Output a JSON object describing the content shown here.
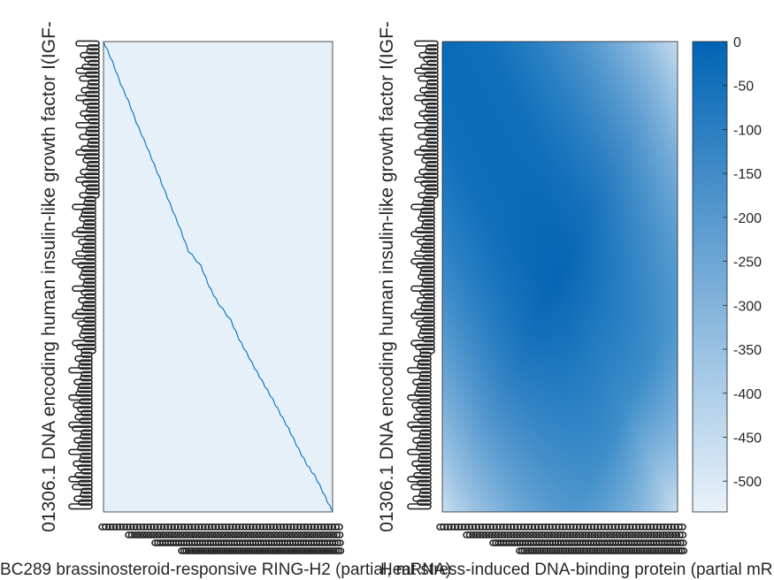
{
  "chart_data": [
    {
      "type": "line",
      "panel": "traceback-path",
      "ylabel": "01306.1 DNA encoding human insulin-like growth factor I(IGF-",
      "xlabel": "BC289 brassinosteroid-responsive RING-H2 (partial, mRNA)",
      "xlabel_overlay": "Heat stress-induced DNA-binding protein (partial mRNA)",
      "x_range": [
        0,
        540
      ],
      "y_range": [
        0,
        540
      ],
      "background": "#e6f0f9",
      "line_color": "#0072bd",
      "path_points": [
        [
          0,
          0
        ],
        [
          20,
          22
        ],
        [
          40,
          48
        ],
        [
          60,
          70
        ],
        [
          80,
          96
        ],
        [
          100,
          118
        ],
        [
          120,
          142
        ],
        [
          140,
          166
        ],
        [
          160,
          190
        ],
        [
          180,
          214
        ],
        [
          200,
          240
        ],
        [
          230,
          258
        ],
        [
          250,
          282
        ],
        [
          270,
          300
        ],
        [
          300,
          320
        ],
        [
          320,
          342
        ],
        [
          340,
          360
        ],
        [
          360,
          378
        ],
        [
          380,
          395
        ],
        [
          400,
          412
        ],
        [
          420,
          430
        ],
        [
          440,
          448
        ],
        [
          460,
          468
        ],
        [
          480,
          486
        ],
        [
          500,
          500
        ],
        [
          520,
          520
        ],
        [
          540,
          540
        ]
      ]
    },
    {
      "type": "heatmap",
      "panel": "score-matrix",
      "ylabel": "01306.1 DNA encoding human insulin-like growth factor I(IGF-",
      "xlabel": "Heat stress-induced DNA-binding protein (partial mRNA)",
      "colormap": [
        "#e9f2fa",
        "#0064b4"
      ],
      "clim": [
        -535,
        0
      ],
      "colorbar_ticks": [
        "0",
        "-50",
        "-100",
        "-150",
        "-200",
        "-250",
        "-300",
        "-350",
        "-400",
        "-450",
        "-500"
      ],
      "colorbar_tick_values": [
        0,
        -50,
        -100,
        -150,
        -200,
        -250,
        -300,
        -350,
        -400,
        -450,
        -500
      ]
    }
  ]
}
